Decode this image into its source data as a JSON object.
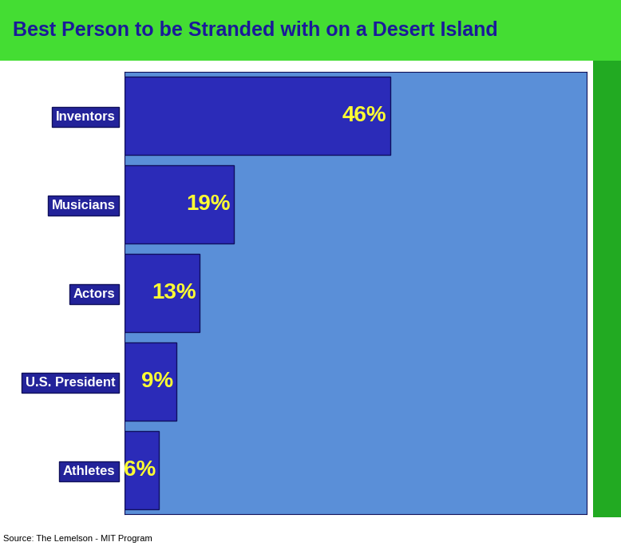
{
  "chart_data": {
    "type": "bar",
    "orientation": "horizontal",
    "title": "Best Person to be Stranded with on a Desert Island",
    "categories": [
      "Inventors",
      "Musicians",
      "Actors",
      "U.S. President",
      "Athletes"
    ],
    "values": [
      46,
      19,
      13,
      9,
      6
    ],
    "value_labels": [
      "46%",
      "19%",
      "13%",
      "9%",
      "6%"
    ],
    "color": "#2b2bb8",
    "xlim": [
      0,
      80
    ],
    "data_labels": true,
    "tick_labels": "y",
    "grid": false,
    "source": "Source: The Lemelson - MIT Program"
  }
}
